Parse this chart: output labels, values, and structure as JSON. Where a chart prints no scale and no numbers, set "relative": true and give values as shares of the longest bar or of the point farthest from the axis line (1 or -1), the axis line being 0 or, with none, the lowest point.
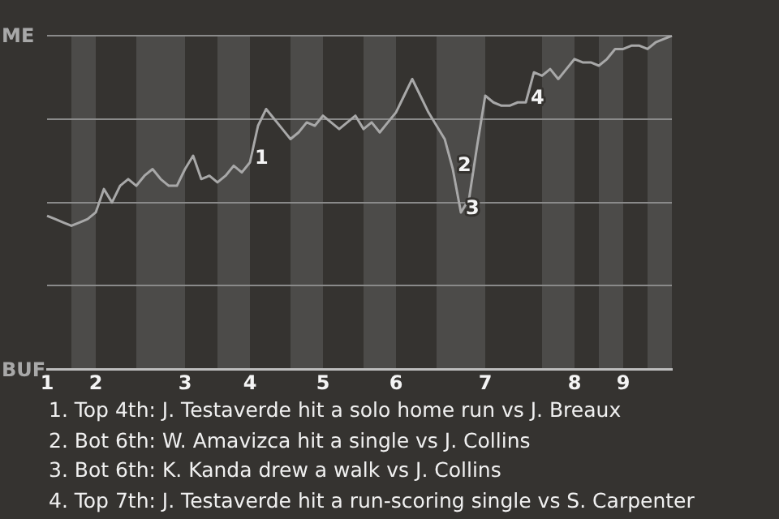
{
  "chart_data": {
    "type": "line",
    "relative": true,
    "categories": [
      "1",
      null,
      null,
      null,
      null,
      null,
      "2",
      null,
      null,
      null,
      null,
      null,
      null,
      null,
      null,
      null,
      null,
      "3",
      null,
      null,
      null,
      null,
      null,
      null,
      null,
      "4",
      null,
      null,
      null,
      null,
      null,
      null,
      null,
      null,
      "5",
      null,
      null,
      null,
      null,
      null,
      null,
      null,
      null,
      "6",
      null,
      null,
      null,
      null,
      null,
      null,
      null,
      null,
      null,
      null,
      "7",
      null,
      null,
      null,
      null,
      null,
      null,
      null,
      null,
      null,
      null,
      "8",
      null,
      null,
      null,
      null,
      null,
      "9",
      null,
      null,
      null,
      null,
      null,
      null
    ],
    "series": [
      {
        "color": "#a8a8a8",
        "values": [
          0.46,
          0.45,
          0.44,
          0.43,
          0.44,
          0.45,
          0.47,
          0.54,
          0.5,
          0.55,
          0.57,
          0.55,
          0.58,
          0.6,
          0.57,
          0.55,
          0.55,
          0.6,
          0.64,
          0.57,
          0.58,
          0.56,
          0.58,
          0.61,
          0.59,
          0.62,
          0.73,
          0.78,
          0.75,
          0.72,
          0.69,
          0.71,
          0.74,
          0.73,
          0.76,
          0.74,
          0.72,
          0.74,
          0.76,
          0.72,
          0.74,
          0.71,
          0.74,
          0.77,
          0.82,
          0.87,
          0.82,
          0.77,
          0.73,
          0.69,
          0.6,
          0.47,
          0.51,
          0.67,
          0.82,
          0.8,
          0.79,
          0.79,
          0.8,
          0.8,
          0.89,
          0.88,
          0.9,
          0.87,
          0.9,
          0.93,
          0.92,
          0.92,
          0.91,
          0.93,
          0.96,
          0.96,
          0.97,
          0.97,
          0.96,
          0.98,
          0.99,
          1
        ]
      }
    ],
    "grid": "y",
    "marker": "none",
    "annotations": [
      "ME",
      "BUF",
      "1",
      "2",
      "3",
      "4",
      "1. Top 4th: J. Testaverde hit a solo home run vs J. Breaux",
      "2. Bot 6th: W. Amavizca hit a single vs J. Collins",
      "3. Bot 6th: K. Kanda drew a walk vs J. Collins",
      "4. Top 7th: J. Testaverde hit a run-scoring single vs S. Carpenter"
    ]
  }
}
